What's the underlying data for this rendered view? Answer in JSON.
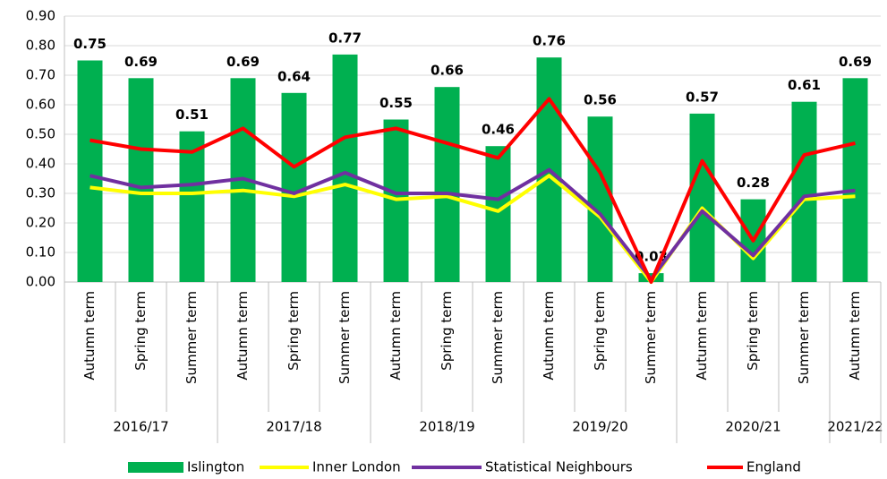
{
  "chart_data": {
    "type": "bar_line",
    "groups": [
      {
        "label": "2016/17",
        "categories": [
          "Autumn term",
          "Spring term",
          "Summer term"
        ]
      },
      {
        "label": "2017/18",
        "categories": [
          "Autumn term",
          "Spring term",
          "Summer term"
        ]
      },
      {
        "label": "2018/19",
        "categories": [
          "Autumn term",
          "Spring term",
          "Summer term"
        ]
      },
      {
        "label": "2019/20",
        "categories": [
          "Autumn term",
          "Spring term",
          "Summer term"
        ]
      },
      {
        "label": "2020/21",
        "categories": [
          "Autumn term",
          "Spring term",
          "Summer term"
        ]
      },
      {
        "label": "2021/22",
        "categories": [
          "Autumn term"
        ]
      }
    ],
    "series": [
      {
        "name": "Islington",
        "type": "bar",
        "color": "#00b050",
        "values": [
          0.75,
          0.69,
          0.51,
          0.69,
          0.64,
          0.77,
          0.55,
          0.66,
          0.46,
          0.76,
          0.56,
          0.03,
          0.57,
          0.28,
          0.61,
          0.69
        ]
      },
      {
        "name": "Inner London",
        "type": "line",
        "color": "#ffff00",
        "values": [
          0.32,
          0.3,
          0.3,
          0.31,
          0.29,
          0.33,
          0.28,
          0.29,
          0.24,
          0.36,
          0.22,
          0.0,
          0.25,
          0.08,
          0.28,
          0.29
        ]
      },
      {
        "name": "Statistical Neighbours",
        "type": "line",
        "color": "#7030a0",
        "values": [
          0.36,
          0.32,
          0.33,
          0.35,
          0.3,
          0.37,
          0.3,
          0.3,
          0.28,
          0.38,
          0.23,
          0.01,
          0.24,
          0.09,
          0.29,
          0.31
        ]
      },
      {
        "name": "England",
        "type": "line",
        "color": "#ff0000",
        "values": [
          0.48,
          0.45,
          0.44,
          0.52,
          0.39,
          0.49,
          0.52,
          0.47,
          0.42,
          0.62,
          0.37,
          0.0,
          0.41,
          0.14,
          0.43,
          0.47
        ]
      }
    ],
    "ylim": [
      0,
      0.9
    ],
    "yticks": [
      {
        "value": 0,
        "label": "0.00"
      },
      {
        "value": 0.1,
        "label": "0.10"
      },
      {
        "value": 0.2,
        "label": "0.20"
      },
      {
        "value": 0.3,
        "label": "0.30"
      },
      {
        "value": 0.4,
        "label": "0.40"
      },
      {
        "value": 0.5,
        "label": "0.50"
      },
      {
        "value": 0.6,
        "label": "0.60"
      },
      {
        "value": 0.7,
        "label": "0.70"
      },
      {
        "value": 0.8,
        "label": "0.80"
      },
      {
        "value": 0.9,
        "label": "0.90"
      }
    ],
    "grid": true,
    "legend": "bottom"
  }
}
